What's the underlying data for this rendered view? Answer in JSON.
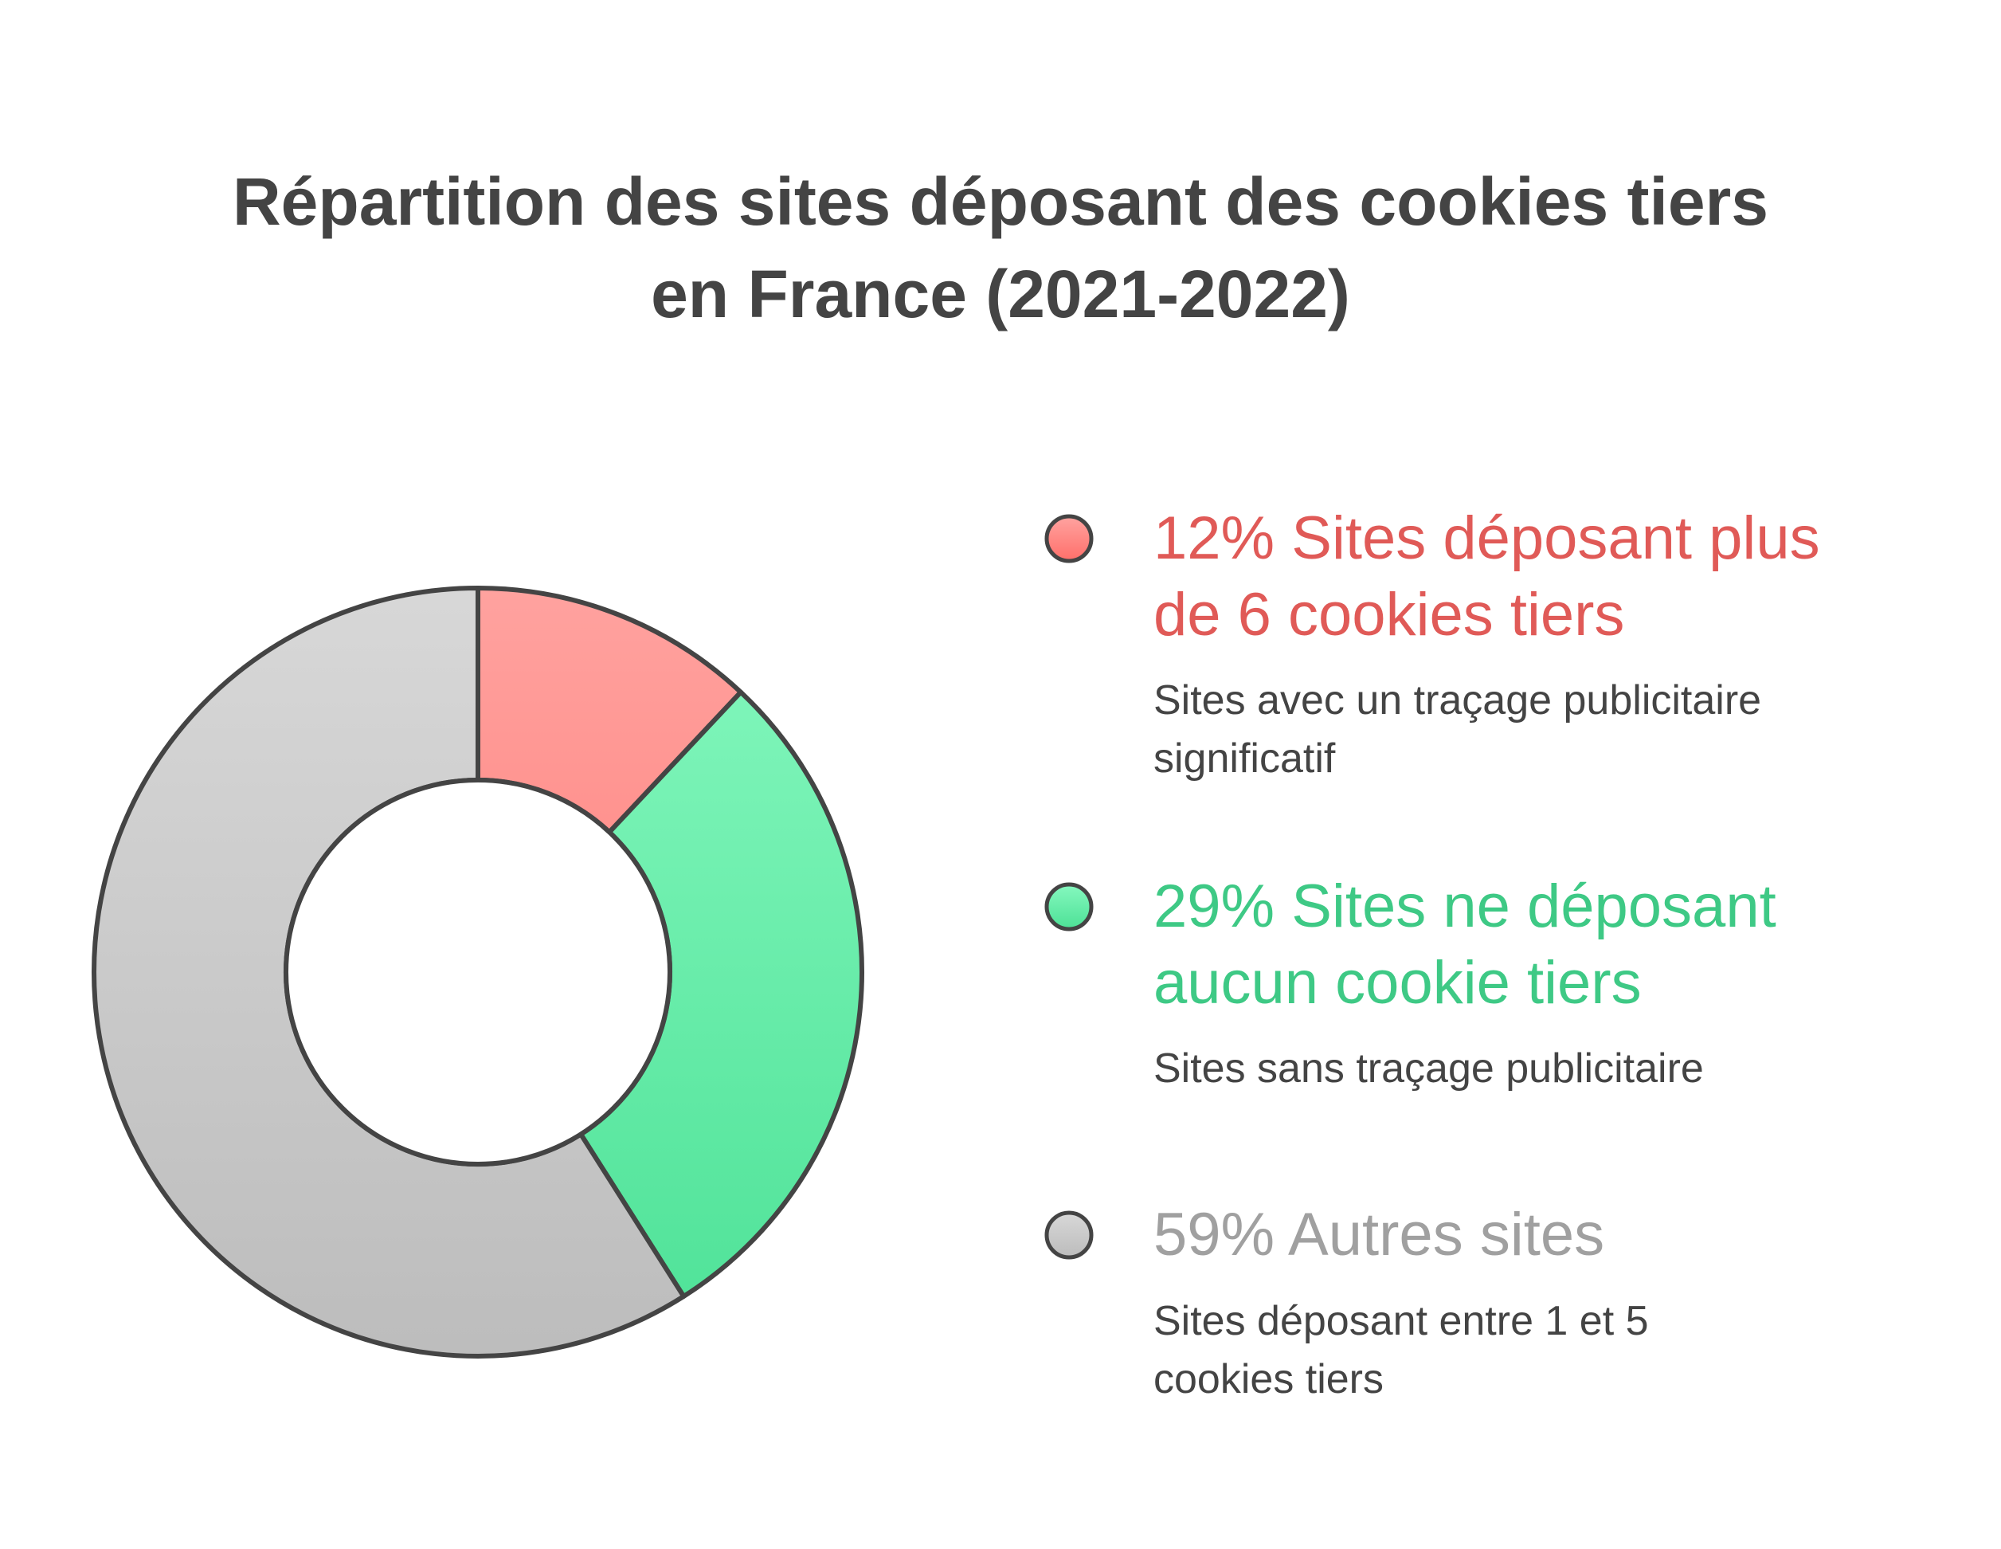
{
  "chart_data": {
    "type": "pie",
    "title_lines": [
      "Répartition des sites déposant des cookies tiers",
      "en France (2021-2022)"
    ],
    "slices": [
      {
        "value": 12,
        "pct_label": "12%",
        "label_lines": [
          "Sites déposant plus",
          "de 6 cookies tiers"
        ],
        "desc_lines": [
          "Sites avec un traçage publicitaire",
          "significatif"
        ],
        "color_top": "#ffa3a0",
        "color_bottom": "#ff6f6a",
        "text_color": "#e05a57"
      },
      {
        "value": 29,
        "pct_label": "29%",
        "label_lines": [
          "Sites ne déposant",
          "aucun cookie tiers"
        ],
        "desc_lines": [
          "Sites sans traçage publicitaire"
        ],
        "color_top": "#86f8bf",
        "color_bottom": "#4ce196",
        "text_color": "#3ec985"
      },
      {
        "value": 59,
        "pct_label": "59%",
        "label_lines": [
          "Autres sites"
        ],
        "desc_lines": [
          "Sites déposant entre 1 et 5",
          "cookies tiers"
        ],
        "color_top": "#d8d8d8",
        "color_bottom": "#bcbcbc",
        "text_color": "#a0a0a0"
      }
    ],
    "outline_color": "#444444",
    "hole": "white donut center"
  }
}
